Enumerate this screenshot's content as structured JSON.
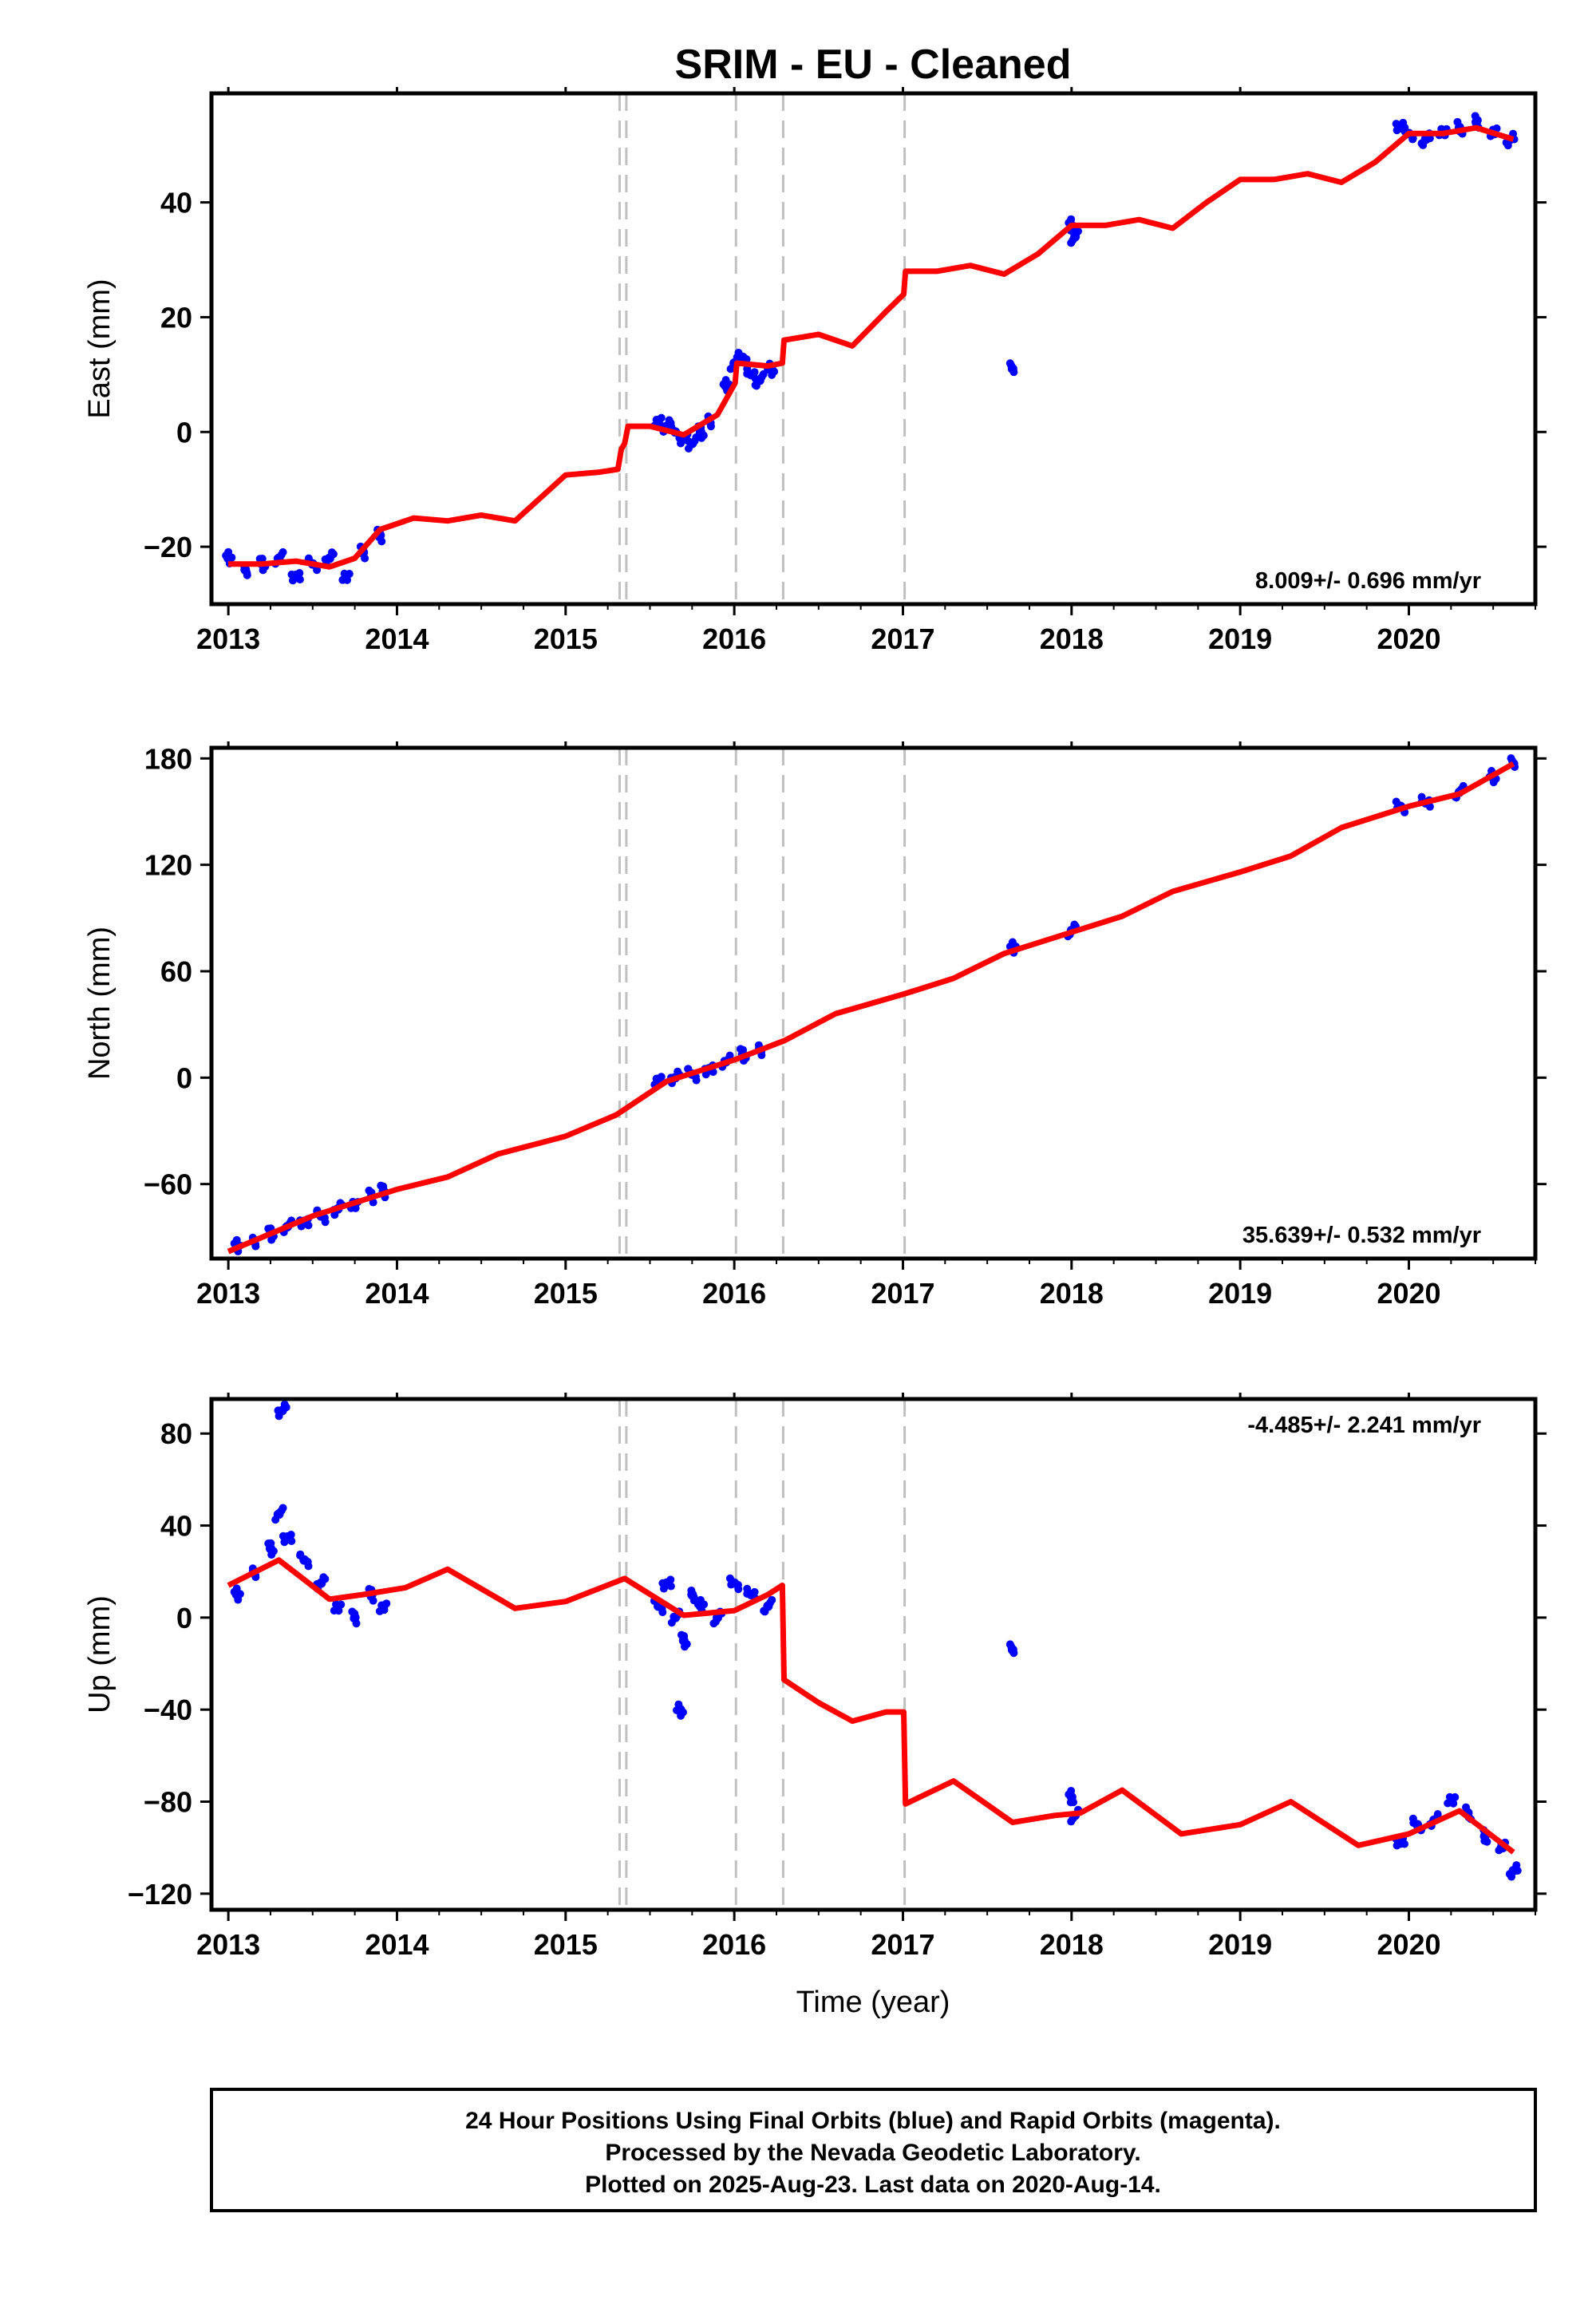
{
  "title": "SRIM  - EU - Cleaned",
  "footer": {
    "lines": [
      "24 Hour Positions Using Final Orbits (blue) and Rapid Orbits (magenta).",
      "Processed by the Nevada Geodetic Laboratory.",
      "Plotted on 2025-Aug-23. Last data on 2020-Aug-14."
    ]
  },
  "colors": {
    "final_orbit_points": "#0000ff",
    "model_fit": "#ff0000",
    "steps": "#c0c0c0",
    "frame": "#000000"
  },
  "chart_data": [
    {
      "type": "scatter",
      "ylabel": "East (mm)",
      "xlabel": "",
      "rate": "8.009+/- 0.696 mm/yr",
      "rate_position": "bottom-right",
      "xlim": [
        2012.9,
        2020.75
      ],
      "ylim": [
        -30,
        59
      ],
      "xticks": [
        "2013",
        "2014",
        "2015",
        "2016",
        "2017",
        "2018",
        "2019",
        "2020"
      ],
      "yticks": [
        "-20",
        "0",
        "20",
        "40"
      ],
      "step_epochs": [
        2015.32,
        2015.36,
        2016.01,
        2016.29,
        2017.01
      ],
      "series": [
        {
          "role": "final orbits (blue)",
          "x": [
            2013.0,
            2013.1,
            2013.2,
            2013.3,
            2013.4,
            2013.5,
            2013.6,
            2013.7,
            2013.8,
            2013.9,
            2015.55,
            2015.6,
            2015.65,
            2015.7,
            2015.75,
            2015.8,
            2015.85,
            2015.95,
            2016.0,
            2016.05,
            2016.1,
            2016.15,
            2016.22,
            2017.65,
            2018.0,
            2018.02,
            2019.95,
            2020.0,
            2020.1,
            2020.2,
            2020.3,
            2020.4,
            2020.5,
            2020.6
          ],
          "y": [
            -22,
            -24,
            -23,
            -22,
            -25,
            -23,
            -22,
            -25,
            -21,
            -18,
            2,
            1,
            0,
            -1,
            -2,
            0,
            2,
            8,
            12,
            13,
            10,
            9,
            11,
            11,
            36,
            34,
            53,
            52,
            51,
            52,
            53,
            54,
            52,
            51
          ]
        },
        {
          "role": "model fit (red)",
          "x": [
            2013.0,
            2013.2,
            2013.4,
            2013.6,
            2013.75,
            2013.9,
            2014.1,
            2014.3,
            2014.5,
            2014.7,
            2015.0,
            2015.2,
            2015.31,
            2015.33,
            2015.35,
            2015.37,
            2015.5,
            2015.7,
            2015.9,
            2016.005,
            2016.015,
            2016.2,
            2016.285,
            2016.295,
            2016.5,
            2016.7,
            2016.9,
            2017.005,
            2017.015,
            2017.2,
            2017.4,
            2017.6,
            2017.8,
            2018.0,
            2018.2,
            2018.4,
            2018.6,
            2018.8,
            2019.0,
            2019.2,
            2019.4,
            2019.6,
            2019.8,
            2020.0,
            2020.2,
            2020.4,
            2020.62
          ],
          "y": [
            -23,
            -23,
            -22.5,
            -23.5,
            -22,
            -17,
            -15,
            -15.5,
            -14.5,
            -15.5,
            -7.5,
            -7,
            -6.5,
            -3,
            -2,
            1,
            1,
            -0.5,
            3,
            8.5,
            12,
            11.5,
            12,
            16,
            17,
            15,
            21,
            24,
            28,
            28,
            29,
            27.5,
            31,
            36,
            36,
            37,
            35.5,
            40,
            44,
            44,
            45,
            43.5,
            47,
            52,
            52,
            53,
            51
          ]
        }
      ]
    },
    {
      "type": "scatter",
      "ylabel": "North (mm)",
      "xlabel": "",
      "rate": "35.639+/- 0.532 mm/yr",
      "rate_position": "bottom-right",
      "xlim": [
        2012.9,
        2020.75
      ],
      "ylim": [
        -102,
        186
      ],
      "xticks": [
        "2013",
        "2014",
        "2015",
        "2016",
        "2017",
        "2018",
        "2019",
        "2020"
      ],
      "yticks": [
        "-60",
        "0",
        "60",
        "120",
        "180"
      ],
      "step_epochs": [
        2015.32,
        2015.36,
        2016.01,
        2016.29,
        2017.01
      ],
      "series": [
        {
          "role": "final orbits (blue)",
          "x": [
            2013.05,
            2013.15,
            2013.25,
            2013.35,
            2013.45,
            2013.55,
            2013.65,
            2013.75,
            2013.85,
            2013.92,
            2015.55,
            2015.65,
            2015.75,
            2015.85,
            2015.95,
            2016.05,
            2016.15,
            2017.65,
            2018.0,
            2019.95,
            2020.1,
            2020.3,
            2020.5,
            2020.62
          ],
          "y": [
            -95,
            -92,
            -88,
            -84,
            -81,
            -78,
            -74,
            -71,
            -67,
            -64,
            -1,
            0,
            2,
            5,
            9,
            13,
            16,
            73,
            83,
            153,
            155,
            161,
            170,
            177
          ]
        },
        {
          "role": "model fit (red)",
          "x": [
            2013.0,
            2013.5,
            2014.0,
            2014.3,
            2014.6,
            2015.0,
            2015.3,
            2015.6,
            2016.0,
            2016.3,
            2016.6,
            2017.0,
            2017.3,
            2017.6,
            2018.0,
            2018.3,
            2018.6,
            2019.0,
            2019.3,
            2019.6,
            2020.0,
            2020.3,
            2020.62
          ],
          "y": [
            -98,
            -78,
            -63,
            -56,
            -43,
            -33,
            -21,
            -2,
            10,
            21,
            36,
            47,
            56,
            70,
            82,
            91,
            105,
            116,
            125,
            141,
            153,
            160,
            177
          ]
        }
      ]
    },
    {
      "type": "scatter",
      "ylabel": "Up (mm)",
      "xlabel": "Time (year)",
      "rate": "-4.485+/- 2.241 mm/yr",
      "rate_position": "top-right",
      "xlim": [
        2012.9,
        2020.75
      ],
      "ylim": [
        -127,
        95
      ],
      "xticks": [
        "2013",
        "2014",
        "2015",
        "2016",
        "2017",
        "2018",
        "2019",
        "2020"
      ],
      "yticks": [
        "-120",
        "-80",
        "-40",
        "0",
        "40",
        "80"
      ],
      "step_epochs": [
        2015.32,
        2015.36,
        2016.01,
        2016.29,
        2017.01
      ],
      "series": [
        {
          "role": "final orbits (blue)",
          "x": [
            2013.05,
            2013.15,
            2013.25,
            2013.3,
            2013.35,
            2013.45,
            2013.55,
            2013.65,
            2013.75,
            2013.85,
            2013.92,
            2013.32,
            2015.55,
            2015.6,
            2015.65,
            2015.7,
            2015.75,
            2015.8,
            2015.9,
            2016.0,
            2016.1,
            2016.2,
            2015.68,
            2017.65,
            2018.0,
            2018.02,
            2019.95,
            2020.05,
            2020.15,
            2020.25,
            2020.35,
            2020.45,
            2020.55,
            2020.62
          ],
          "y": [
            10,
            20,
            30,
            45,
            35,
            25,
            15,
            5,
            0,
            10,
            5,
            90,
            5,
            15,
            0,
            -10,
            10,
            5,
            0,
            15,
            10,
            5,
            -40,
            -14,
            -78,
            -86,
            -98,
            -90,
            -88,
            -80,
            -85,
            -95,
            -100,
            -110
          ]
        },
        {
          "role": "model fit (red)",
          "x": [
            2013.0,
            2013.3,
            2013.6,
            2013.8,
            2014.05,
            2014.3,
            2014.7,
            2015.0,
            2015.35,
            2015.7,
            2016.0,
            2016.2,
            2016.285,
            2016.295,
            2016.5,
            2016.7,
            2016.9,
            2017.005,
            2017.015,
            2017.3,
            2017.65,
            2017.9,
            2018.05,
            2018.3,
            2018.65,
            2019.0,
            2019.3,
            2019.7,
            2020.0,
            2020.3,
            2020.62
          ],
          "y": [
            14,
            25,
            8,
            10,
            13,
            21,
            4,
            7,
            17,
            1,
            3,
            10,
            14,
            -27,
            -37,
            -45,
            -41,
            -41,
            -81,
            -71,
            -89,
            -86,
            -85,
            -75,
            -94,
            -90,
            -80,
            -99,
            -94,
            -84,
            -102
          ]
        }
      ]
    }
  ]
}
